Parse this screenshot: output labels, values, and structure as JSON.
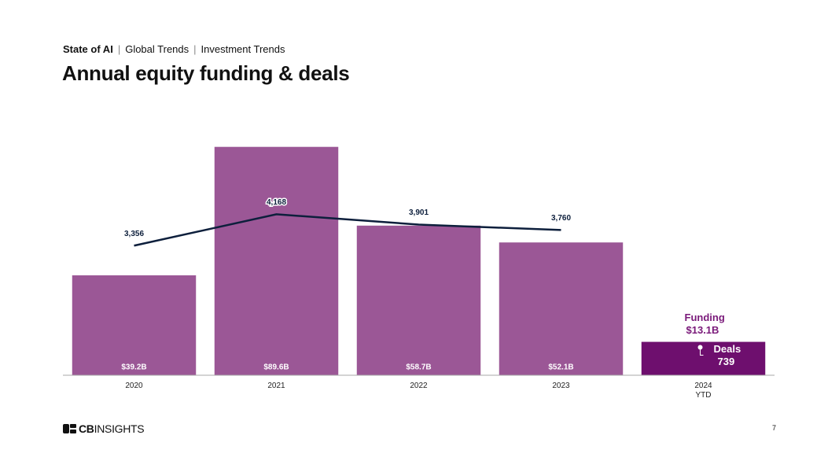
{
  "header": {
    "breadcrumb": [
      "State of AI",
      "Global Trends",
      "Investment Trends"
    ],
    "logo": [
      "CB",
      "INSIGHTS"
    ],
    "page_number": 7
  },
  "chart_data": {
    "type": "bar",
    "title": "Annual equity funding & deals",
    "categories": [
      "2020",
      "2021",
      "2022",
      "2023",
      "2024 YTD"
    ],
    "series": [
      {
        "name": "Funding",
        "type": "bar",
        "values": [
          39.2,
          89.6,
          58.7,
          52.1,
          13.1
        ],
        "value_labels": [
          "$39.2B",
          "$89.6B",
          "$58.7B",
          "$52.1B",
          "$13.1B"
        ],
        "colors": [
          "#9b5796",
          "#9b5796",
          "#9b5796",
          "#9b5796",
          "#6e0f6e"
        ]
      },
      {
        "name": "Deals",
        "type": "line",
        "axis": "y2",
        "color": "#0d1f3c",
        "values": [
          3356,
          4168,
          3901,
          3760,
          null
        ],
        "value_labels": [
          "3,356",
          "4,168",
          "3,901",
          "3,760",
          null
        ]
      }
    ],
    "annotations": [
      {
        "label": "Deals",
        "value": 739
      }
    ],
    "ylim": [
      0,
      100
    ],
    "y2lim": [
      0,
      6600
    ]
  }
}
